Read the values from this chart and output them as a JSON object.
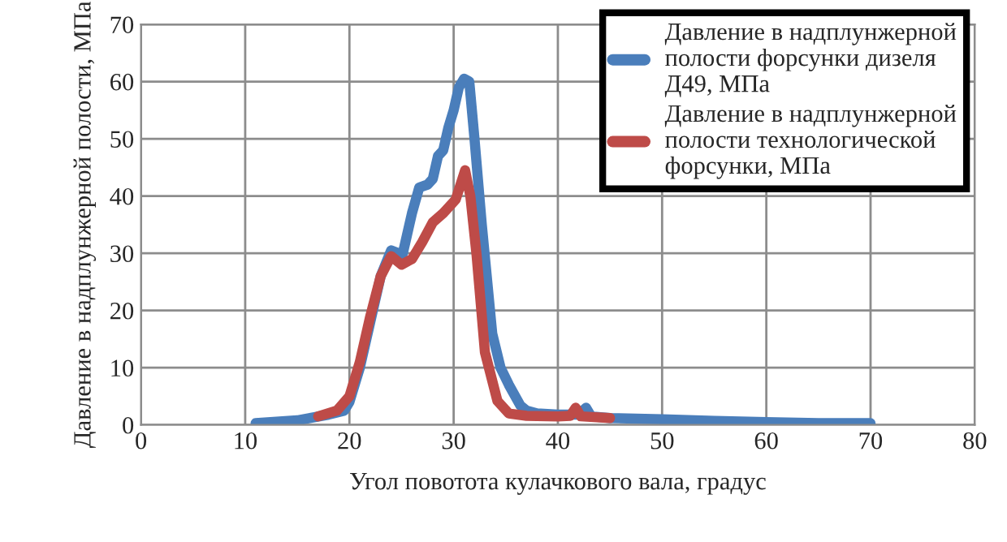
{
  "chart_data": {
    "type": "line",
    "xlabel": "Угол повотота кулачкового вала, градус",
    "ylabel": "Давление в надплунжерной полости, МПа",
    "xlim": [
      0,
      80
    ],
    "xticks": [
      0,
      10,
      20,
      30,
      40,
      50,
      60,
      70,
      80
    ],
    "ylim": [
      0,
      70
    ],
    "yticks": [
      0,
      10,
      20,
      30,
      40,
      50,
      60,
      70
    ],
    "grid": true,
    "legend": "top right",
    "marker": "none",
    "line_style": "solid",
    "series": [
      {
        "name": "Давление в надплунжерной\nполости форсунки дизеля\nД49, МПа",
        "color": "#4a7ebb",
        "x": [
          11,
          15,
          18,
          19.5,
          20,
          21,
          22,
          23,
          24,
          24.7,
          25,
          25.5,
          26,
          26.7,
          27.5,
          28,
          28.5,
          29,
          29.5,
          30,
          30.5,
          31,
          31.5,
          32,
          32.7,
          33.7,
          34.5,
          35.3,
          36.4,
          37,
          38,
          40,
          42,
          42.7,
          43.2,
          45,
          50,
          55,
          60,
          65,
          70
        ],
        "values": [
          0.3,
          0.8,
          1.8,
          2.5,
          4,
          10,
          18,
          26,
          30.5,
          30,
          29,
          33,
          37,
          41.5,
          42,
          43,
          47,
          48,
          52,
          55,
          59,
          60.5,
          60,
          50,
          35,
          16,
          10,
          7,
          3.4,
          2.5,
          2,
          1.8,
          1.8,
          3,
          1.5,
          1.2,
          1,
          0.7,
          0.5,
          0.3,
          0.3
        ]
      },
      {
        "name": "Давление в надплунжерной\nполости технологической\nфорсунки, МПа",
        "color": "#be4b48",
        "x": [
          17,
          18.8,
          20,
          21,
          22,
          23,
          24,
          25,
          26,
          27,
          28,
          29,
          30.2,
          31.1,
          31.6,
          32.2,
          33,
          34.2,
          35.3,
          37,
          40,
          41.2,
          41.7,
          42.2,
          45
        ],
        "values": [
          1.5,
          2.5,
          5,
          11,
          19,
          26,
          29.5,
          28,
          29,
          32,
          35.4,
          37,
          39.4,
          44.5,
          40,
          29.7,
          12.7,
          4.2,
          2,
          1.6,
          1.5,
          1.6,
          3,
          1.5,
          1.2
        ]
      }
    ]
  }
}
